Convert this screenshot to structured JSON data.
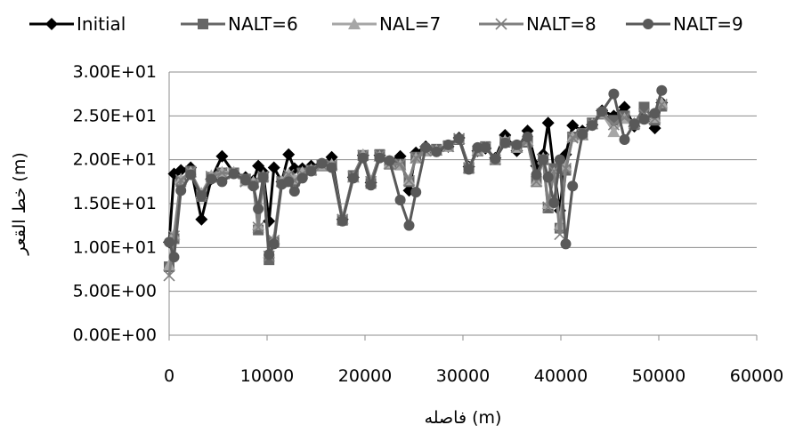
{
  "chart_data": {
    "type": "line",
    "xlabel": "فاصله (m)",
    "ylabel": "خط القعر (m)",
    "xlim": [
      0,
      60000
    ],
    "ylim": [
      0,
      30
    ],
    "x_ticks": [
      "0",
      "10000",
      "20000",
      "30000",
      "40000",
      "50000",
      "60000"
    ],
    "y_ticks": [
      "0.00E+00",
      "5.00E+00",
      "1.00E+01",
      "1.50E+01",
      "2.00E+01",
      "2.50E+01",
      "3.00E+01"
    ],
    "grid": "horizontal",
    "legend_position": "top",
    "series": [
      {
        "name": "Initial",
        "color": "#000000",
        "marker": "diamond",
        "x": [
          0,
          500,
          1200,
          2200,
          3300,
          4300,
          5400,
          6600,
          7800,
          8600,
          9100,
          9600,
          10200,
          10700,
          11500,
          12200,
          12800,
          13600,
          14500,
          15600,
          16600,
          17700,
          18800,
          19800,
          20600,
          21500,
          22500,
          23600,
          24500,
          25200,
          26200,
          27300,
          28500,
          29600,
          30600,
          31500,
          32300,
          33300,
          34300,
          35500,
          36600,
          37500,
          38200,
          38700,
          39300,
          39900,
          40500,
          41200,
          42200,
          43200,
          44200,
          45400,
          46500,
          47500,
          48500,
          49600,
          50300
        ],
        "y": [
          10.6,
          18.4,
          18.8,
          19.1,
          13.2,
          17.8,
          20.4,
          18.5,
          18.0,
          17.6,
          19.3,
          18.6,
          13.0,
          19.1,
          17.5,
          20.6,
          19.0,
          19.0,
          19.3,
          19.5,
          20.3,
          13.2,
          18.0,
          20.5,
          17.4,
          20.5,
          19.8,
          20.4,
          16.5,
          20.8,
          21.5,
          21.0,
          21.5,
          22.5,
          19.2,
          21.0,
          21.3,
          20.2,
          22.8,
          21.0,
          23.3,
          19.3,
          20.6,
          24.2,
          18.6,
          14.2,
          20.6,
          23.9,
          23.3,
          24.0,
          25.6,
          25.0,
          26.0,
          23.8,
          24.8,
          23.6,
          26.5
        ]
      },
      {
        "name": "NALT=6",
        "color": "#666666",
        "marker": "square",
        "x": [
          0,
          500,
          1200,
          2200,
          3300,
          4300,
          5400,
          6600,
          7800,
          8600,
          9100,
          9600,
          10200,
          10700,
          11500,
          12200,
          12800,
          13600,
          14500,
          15600,
          16600,
          17700,
          18800,
          19800,
          20600,
          21500,
          22500,
          23600,
          24500,
          25200,
          26200,
          27300,
          28500,
          29600,
          30600,
          31500,
          32300,
          33300,
          34300,
          35500,
          36600,
          37500,
          38200,
          38700,
          39300,
          39900,
          40500,
          41200,
          42200,
          43200,
          44200,
          45400,
          46500,
          47500,
          48500,
          49600,
          50300
        ],
        "y": [
          7.8,
          11.0,
          17.5,
          18.7,
          15.8,
          18.0,
          18.5,
          18.5,
          17.8,
          17.3,
          12.0,
          18.0,
          8.6,
          10.6,
          17.5,
          18.0,
          17.6,
          18.5,
          18.8,
          19.3,
          19.3,
          13.1,
          18.2,
          20.5,
          17.3,
          20.6,
          19.5,
          19.5,
          17.5,
          20.3,
          21.0,
          21.2,
          21.6,
          22.3,
          19.0,
          21.0,
          21.5,
          20.0,
          22.0,
          21.5,
          22.0,
          17.5,
          20.0,
          14.5,
          19.0,
          12.2,
          18.8,
          22.6,
          23.0,
          24.2,
          25.2,
          24.5,
          25.0,
          24.0,
          26.0,
          24.5,
          26.1
        ]
      },
      {
        "name": "NAL=7",
        "color": "#a6a6a6",
        "marker": "triangle",
        "x": [
          0,
          500,
          1200,
          2200,
          3300,
          4300,
          5400,
          6600,
          7800,
          8600,
          9100,
          9600,
          10200,
          10700,
          11500,
          12200,
          12800,
          13600,
          14500,
          15600,
          16600,
          17700,
          18800,
          19800,
          20600,
          21500,
          22500,
          23600,
          24500,
          25200,
          26200,
          27300,
          28500,
          29600,
          30600,
          31500,
          32300,
          33300,
          34300,
          35500,
          36600,
          37500,
          38200,
          38700,
          39300,
          39900,
          40500,
          41200,
          42200,
          43200,
          44200,
          45400,
          46500,
          47500,
          48500,
          49600,
          50300
        ],
        "y": [
          8.0,
          11.5,
          17.8,
          18.6,
          16.2,
          18.2,
          18.6,
          18.6,
          17.6,
          17.5,
          12.6,
          18.2,
          9.4,
          11.0,
          17.6,
          18.4,
          17.8,
          18.6,
          18.9,
          19.4,
          19.5,
          13.3,
          18.0,
          20.6,
          17.6,
          20.4,
          19.6,
          19.4,
          17.7,
          20.2,
          21.0,
          21.1,
          21.5,
          22.4,
          19.1,
          21.1,
          21.4,
          20.1,
          22.2,
          21.4,
          22.2,
          17.6,
          20.2,
          15.0,
          18.5,
          12.6,
          19.3,
          22.6,
          22.8,
          24.1,
          25.3,
          23.2,
          24.7,
          24.2,
          24.7,
          24.8,
          26.5
        ]
      },
      {
        "name": "NALT=8",
        "color": "#7f7f7f",
        "marker": "cross",
        "x": [
          0,
          500,
          1200,
          2200,
          3300,
          4300,
          5400,
          6600,
          7800,
          8600,
          9100,
          9600,
          10200,
          10700,
          11500,
          12200,
          12800,
          13600,
          14500,
          15600,
          16600,
          17700,
          18800,
          19800,
          20600,
          21500,
          22500,
          23600,
          24500,
          25200,
          26200,
          27300,
          28500,
          29600,
          30600,
          31500,
          32300,
          33300,
          34300,
          35500,
          36600,
          37500,
          38200,
          38700,
          39300,
          39900,
          40500,
          41200,
          42200,
          43200,
          44200,
          45400,
          46500,
          47500,
          48500,
          49600,
          50300
        ],
        "y": [
          6.8,
          11.3,
          17.7,
          18.6,
          16.0,
          18.1,
          18.5,
          18.4,
          17.5,
          17.4,
          12.3,
          18.1,
          9.0,
          10.8,
          17.5,
          18.3,
          17.6,
          18.4,
          18.8,
          19.4,
          19.4,
          13.2,
          18.1,
          20.5,
          17.5,
          20.5,
          19.5,
          19.5,
          17.6,
          20.2,
          21.0,
          21.1,
          21.5,
          22.4,
          19.1,
          21.0,
          21.4,
          20.0,
          22.1,
          21.4,
          22.1,
          17.5,
          20.1,
          14.6,
          18.7,
          11.5,
          19.0,
          22.5,
          22.9,
          24.1,
          25.2,
          24.0,
          24.8,
          24.1,
          25.2,
          24.7,
          26.3
        ]
      },
      {
        "name": "NALT=9",
        "color": "#595959",
        "marker": "circle",
        "x": [
          0,
          500,
          1200,
          2200,
          3300,
          4300,
          5400,
          6600,
          7800,
          8600,
          9100,
          9600,
          10200,
          10700,
          11500,
          12200,
          12800,
          13600,
          14500,
          15600,
          16600,
          17700,
          18800,
          19800,
          20600,
          21500,
          22500,
          23600,
          24500,
          25200,
          26200,
          27300,
          28500,
          29600,
          30600,
          31500,
          32300,
          33300,
          34300,
          35500,
          36600,
          37500,
          38200,
          38700,
          39300,
          39900,
          40500,
          41200,
          42200,
          43200,
          44200,
          45400,
          46500,
          47500,
          48500,
          49600,
          50300
        ],
        "y": [
          10.6,
          8.9,
          16.5,
          18.3,
          15.9,
          17.8,
          17.5,
          18.4,
          17.7,
          17.0,
          14.4,
          18.0,
          9.2,
          10.4,
          17.2,
          17.5,
          16.4,
          17.9,
          18.7,
          19.6,
          19.1,
          13.0,
          17.9,
          20.2,
          17.1,
          20.2,
          19.9,
          15.4,
          12.5,
          16.3,
          21.4,
          20.9,
          21.7,
          22.4,
          18.9,
          21.4,
          21.4,
          20.1,
          21.9,
          21.7,
          22.6,
          18.3,
          20.0,
          18.0,
          15.1,
          20.0,
          10.4,
          17.0,
          22.9,
          23.9,
          25.5,
          27.5,
          22.3,
          24.1,
          24.6,
          25.3,
          27.9
        ]
      }
    ]
  }
}
